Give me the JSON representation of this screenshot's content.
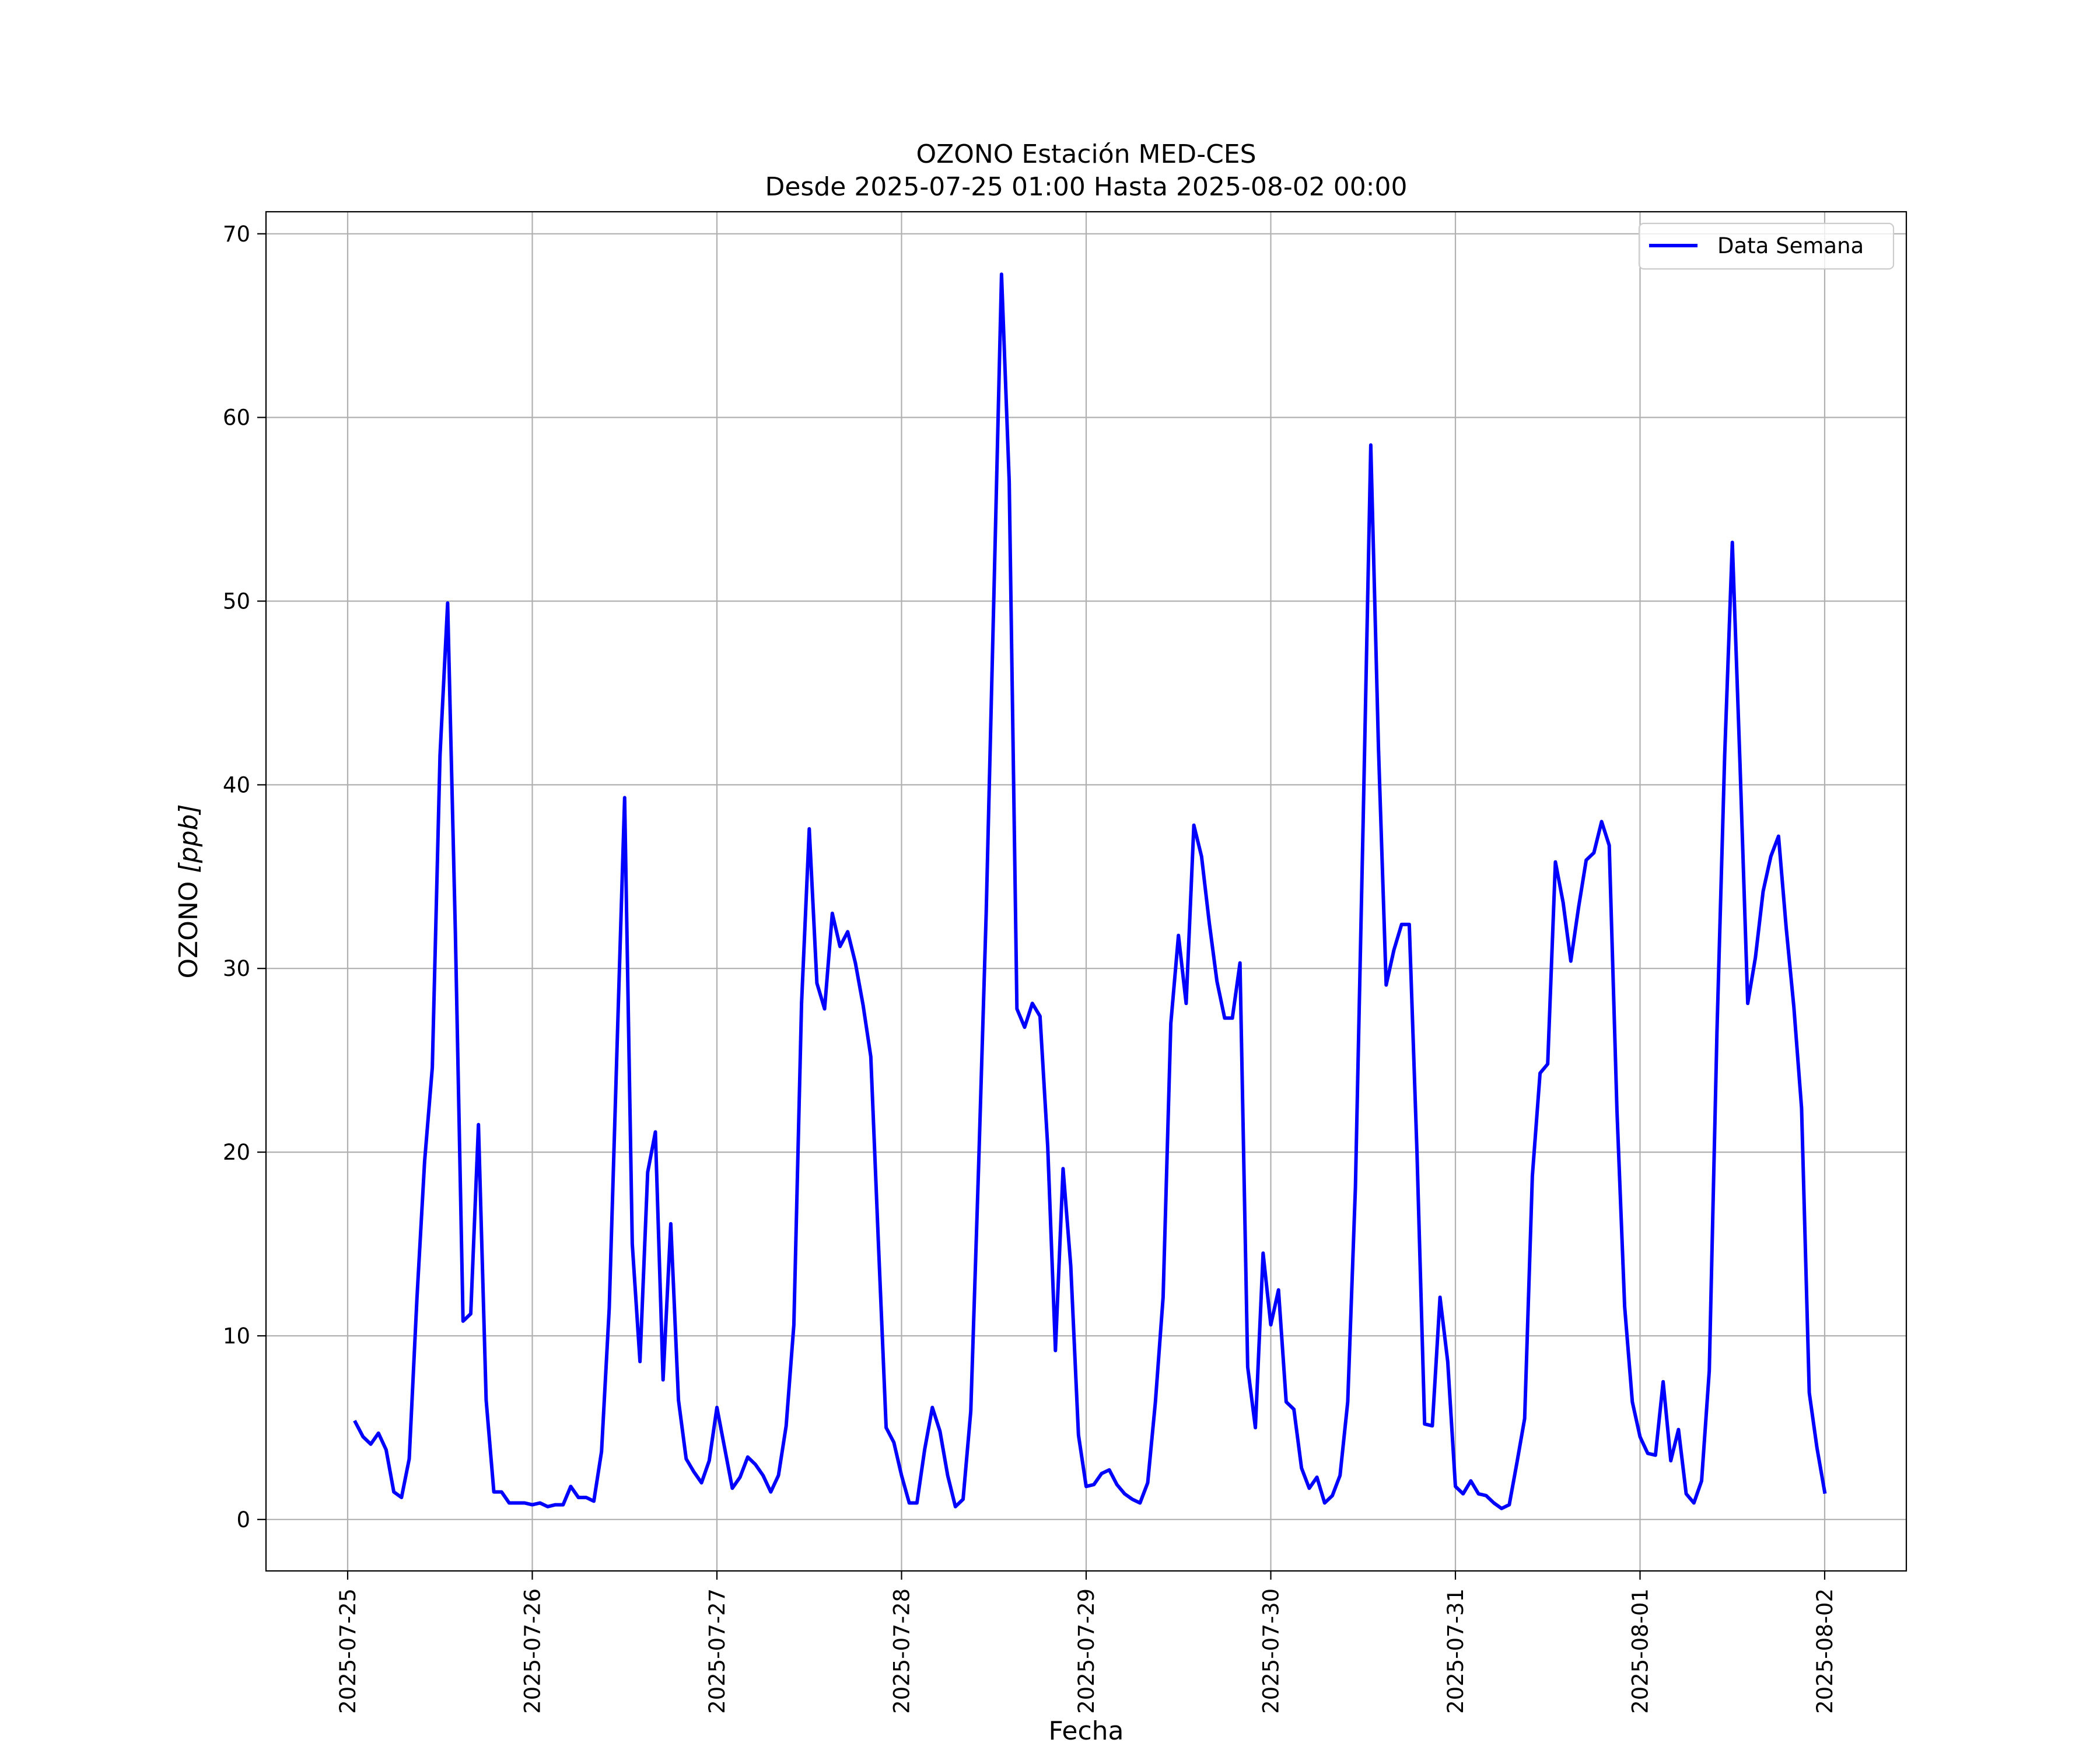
{
  "chart_data": {
    "type": "line",
    "title": "OZONO Estación MED-CES",
    "subtitle": "Desde 2025-07-25 01:00 Hasta 2025-08-02 00:00",
    "xlabel": "Fecha",
    "ylabel_main": "OZONO ",
    "ylabel_unit": "[ppb]",
    "xlim": [
      "2025-07-24 13:23",
      "2025-08-02 10:37"
    ],
    "ylim": [
      -2.8,
      71.2
    ],
    "yticks": [
      0,
      10,
      20,
      30,
      40,
      50,
      60,
      70
    ],
    "xticks": [
      "2025-07-25",
      "2025-07-26",
      "2025-07-27",
      "2025-07-28",
      "2025-07-29",
      "2025-07-30",
      "2025-07-31",
      "2025-08-01",
      "2025-08-02"
    ],
    "grid": true,
    "legend_position": "top-right",
    "series": [
      {
        "name": "Data Semana",
        "color": "#0000ff",
        "start": "2025-07-25 01:00",
        "step_hours": 1,
        "values": [
          5.3,
          4.5,
          4.1,
          4.7,
          3.8,
          1.5,
          1.2,
          3.3,
          12,
          19.5,
          24.6,
          41.6,
          49.9,
          32,
          10.8,
          11.2,
          21.5,
          6.5,
          1.5,
          1.5,
          0.9,
          0.9,
          0.9,
          0.8,
          0.9,
          0.7,
          0.8,
          0.8,
          1.8,
          1.2,
          1.2,
          1,
          3.7,
          11.5,
          25.5,
          39.3,
          15,
          8.6,
          18.9,
          21.1,
          7.6,
          16.1,
          6.5,
          3.3,
          2.6,
          2,
          3.2,
          6.1,
          3.9,
          1.7,
          2.3,
          3.4,
          3,
          2.4,
          1.5,
          2.4,
          5.1,
          10.6,
          28.1,
          37.6,
          29.2,
          27.8,
          33,
          31.2,
          32,
          30.3,
          28,
          25.2,
          15,
          5,
          4.2,
          2.4,
          0.9,
          0.9,
          3.8,
          6.1,
          4.8,
          2.4,
          0.7,
          1.1,
          5.9,
          19,
          33,
          50.3,
          67.8,
          56.5,
          27.8,
          26.8,
          28.1,
          27.4,
          20.3,
          9.2,
          19.1,
          13.8,
          4.6,
          1.8,
          1.9,
          2.5,
          2.7,
          1.9,
          1.4,
          1.1,
          0.9,
          2,
          6.4,
          12.1,
          27,
          31.8,
          28.1,
          37.8,
          36.1,
          32.5,
          29.3,
          27.3,
          27.3,
          30.3,
          8.3,
          5,
          14.5,
          10.6,
          12.5,
          6.4,
          6,
          2.8,
          1.7,
          2.3,
          0.9,
          1.3,
          2.4,
          6.4,
          18.1,
          37.8,
          58.5,
          42,
          29.1,
          31,
          32.4,
          32.4,
          20,
          5.2,
          5.1,
          12.1,
          8.6,
          1.8,
          1.4,
          2.1,
          1.4,
          1.3,
          0.9,
          0.6,
          0.8,
          3.1,
          5.5,
          18.7,
          24.3,
          24.8,
          35.8,
          33.6,
          30.4,
          33.3,
          35.9,
          36.3,
          38,
          36.7,
          22.3,
          11.6,
          6.4,
          4.5,
          3.6,
          3.5,
          7.5,
          3.2,
          4.9,
          1.4,
          0.9,
          2.1,
          8.1,
          26.6,
          41.6,
          53.2,
          41.1,
          28.1,
          30.6,
          34.2,
          36.1,
          37.2,
          32.2,
          27.9,
          22.4,
          6.9,
          3.9,
          1.5
        ]
      }
    ]
  }
}
